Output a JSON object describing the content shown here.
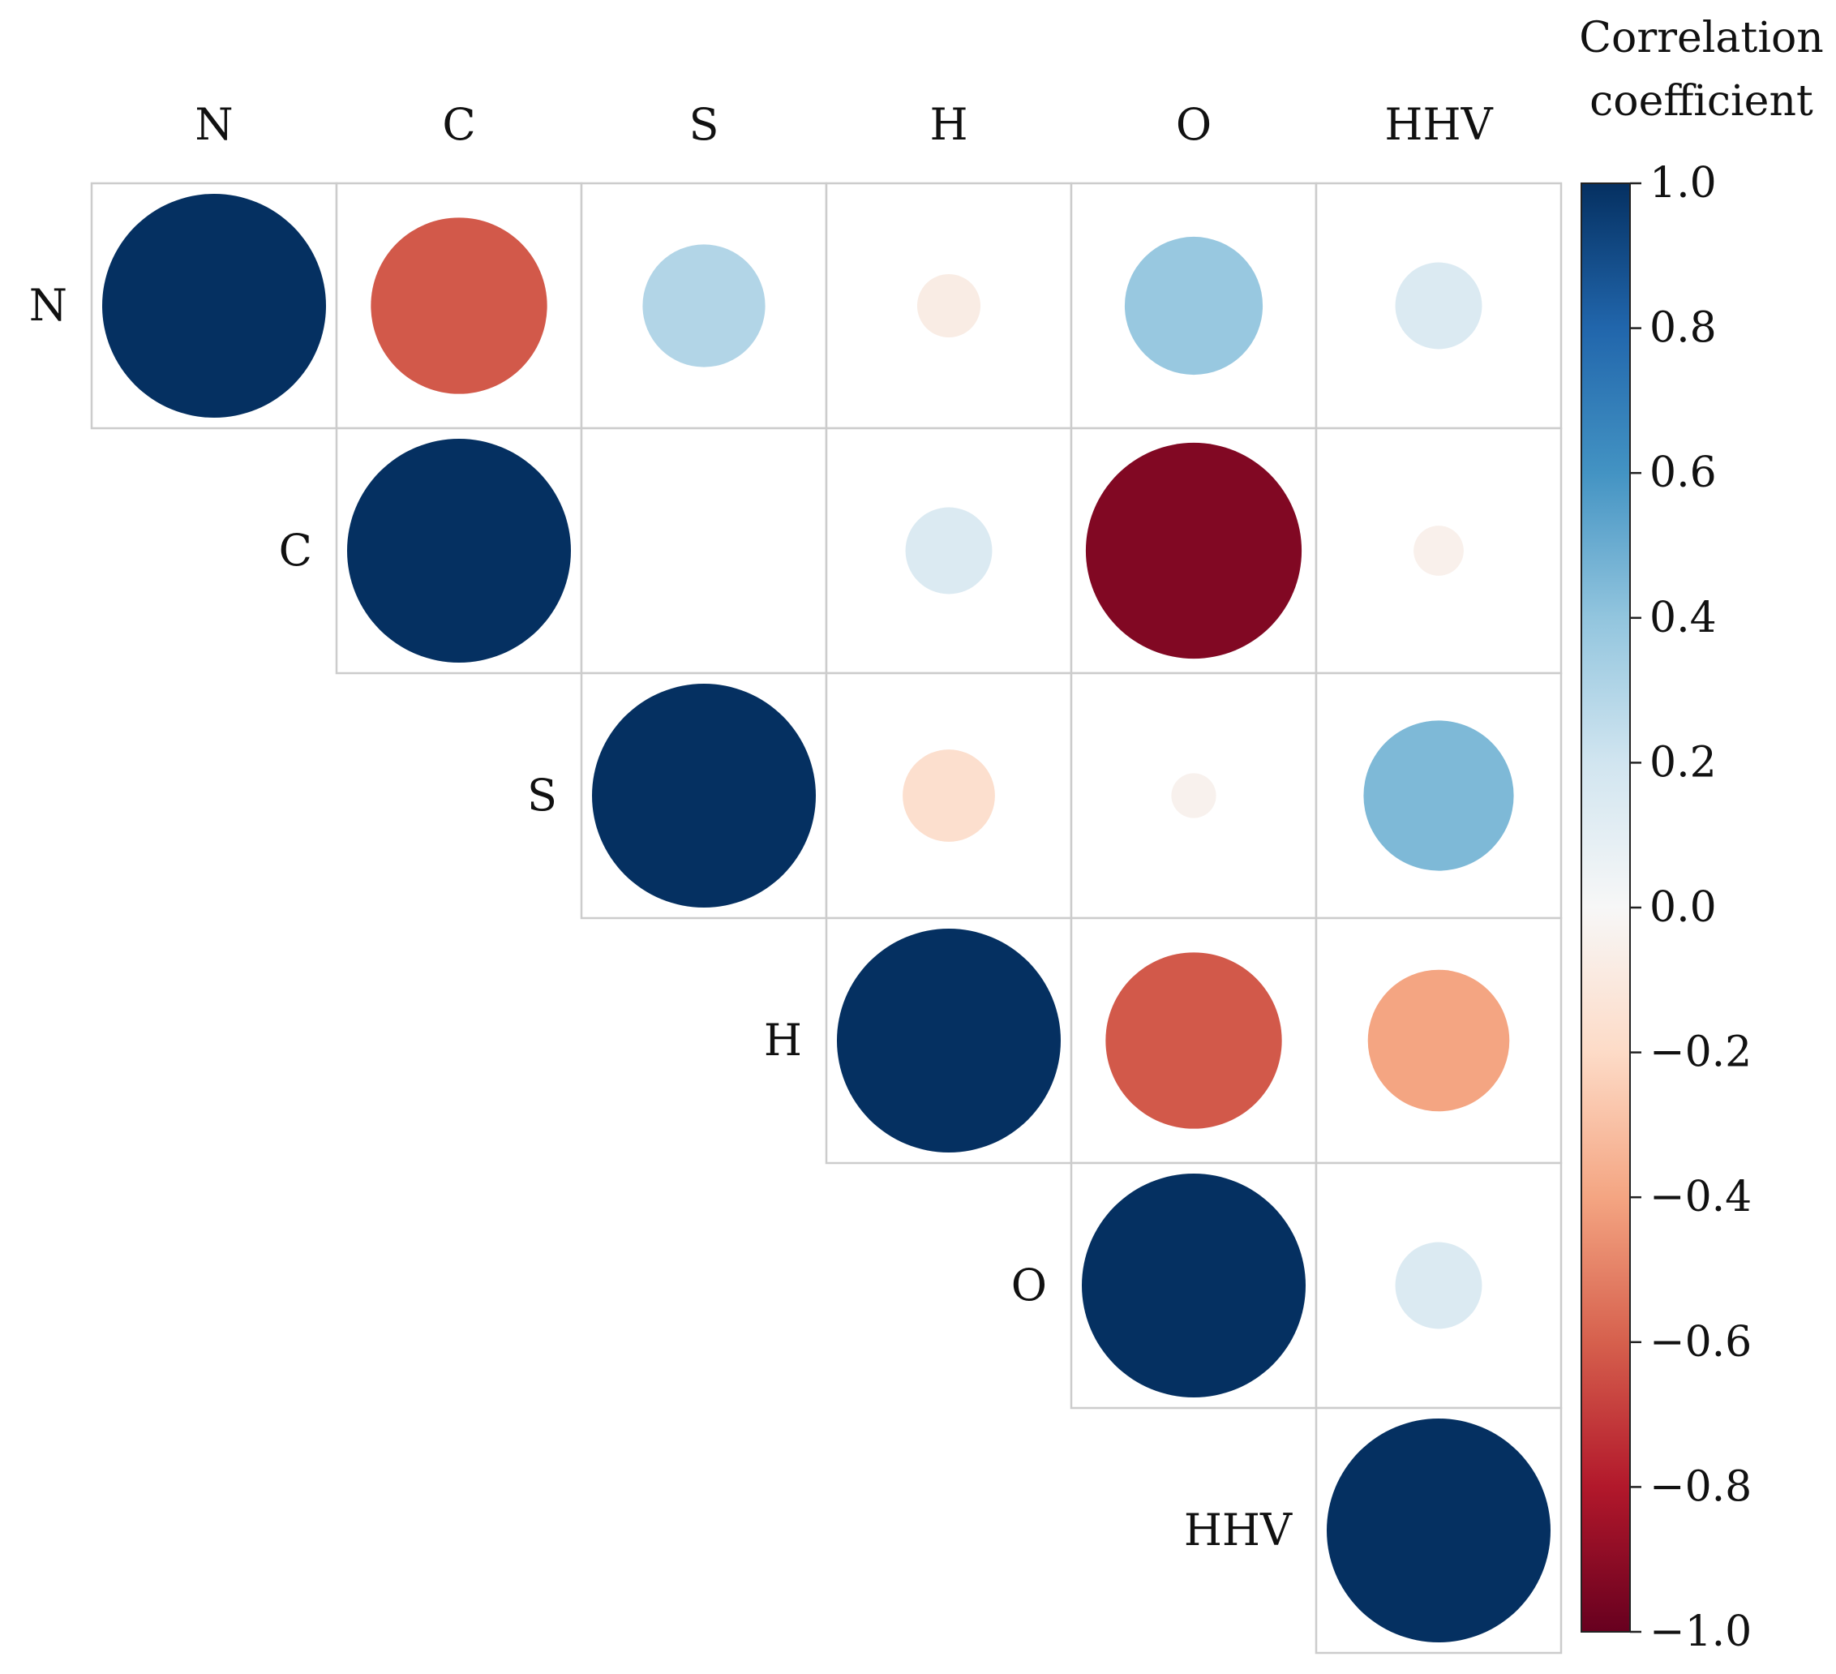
{
  "chart_data": {
    "type": "heatmap",
    "subtype": "upper-triangle correlation matrix (circles)",
    "variables": [
      "N",
      "C",
      "S",
      "H",
      "O",
      "HHV"
    ],
    "matrix": [
      [
        1.0,
        -0.62,
        0.3,
        -0.08,
        0.38,
        0.15
      ],
      [
        null,
        1.0,
        0.0,
        0.15,
        -0.93,
        -0.05
      ],
      [
        null,
        null,
        1.0,
        -0.17,
        -0.04,
        0.45
      ],
      [
        null,
        null,
        null,
        1.0,
        -0.62,
        -0.4
      ],
      [
        null,
        null,
        null,
        null,
        1.0,
        0.15
      ],
      [
        null,
        null,
        null,
        null,
        null,
        1.0
      ]
    ],
    "colorbar": {
      "title_lines": [
        "Correlation",
        "coefficient"
      ],
      "min": -1.0,
      "max": 1.0,
      "tick_values": [
        1.0,
        0.8,
        0.6,
        0.4,
        0.2,
        0.0,
        -0.2,
        -0.4,
        -0.6,
        -0.8,
        -1.0
      ],
      "tick_labels": [
        "1.0",
        "0.8",
        "0.6",
        "0.4",
        "0.2",
        "0.0",
        "−0.2",
        "−0.4",
        "−0.6",
        "−0.8",
        "−1.0"
      ],
      "colormap": "RdBu",
      "colormap_stops": [
        "#67001f",
        "#b2182b",
        "#d6604d",
        "#f4a582",
        "#fddbc7",
        "#f7f7f7",
        "#d1e5f0",
        "#92c5de",
        "#4393c3",
        "#2166ac",
        "#053061"
      ]
    },
    "size_encoding": "circle area proportional to |r|",
    "grid_color": "#cccccc"
  }
}
